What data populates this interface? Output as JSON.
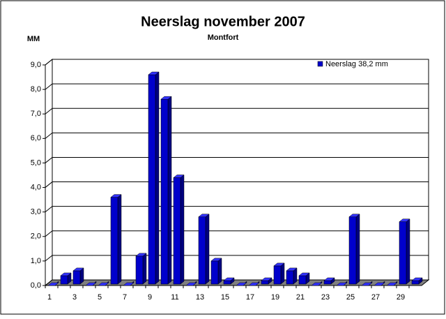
{
  "chart_data": {
    "type": "bar3d",
    "title": "Neerslag november 2007",
    "subtitle": "Montfort",
    "y_label": "MM",
    "categories": [
      1,
      null,
      3,
      null,
      5,
      null,
      7,
      null,
      9,
      null,
      11,
      null,
      13,
      null,
      15,
      null,
      17,
      null,
      19,
      null,
      21,
      null,
      23,
      null,
      25,
      null,
      27,
      null,
      29,
      null
    ],
    "series": [
      {
        "name": "Neerslag 38,2 mm",
        "color": "#0000cc",
        "values": [
          0,
          0.4,
          0.6,
          0,
          0,
          3.6,
          0,
          1.2,
          8.6,
          7.6,
          4.4,
          0,
          2.8,
          1.0,
          0.2,
          0,
          0,
          0.2,
          0.8,
          0.6,
          0.4,
          0,
          0.2,
          0,
          2.8,
          0,
          0,
          0,
          2.6,
          0.2
        ]
      }
    ],
    "ylim": [
      0,
      9
    ],
    "yticks": [
      {
        "value": 0,
        "label": "0,0"
      },
      {
        "value": 1,
        "label": "1,0"
      },
      {
        "value": 2,
        "label": "2,0"
      },
      {
        "value": 3,
        "label": "3,0"
      },
      {
        "value": 4,
        "label": "4,0"
      },
      {
        "value": 5,
        "label": "5,0"
      },
      {
        "value": 6,
        "label": "6,0"
      },
      {
        "value": 7,
        "label": "7,0"
      },
      {
        "value": 8,
        "label": "8,0"
      },
      {
        "value": 9,
        "label": "9,0"
      }
    ],
    "grid": true,
    "legend": "top-right"
  }
}
